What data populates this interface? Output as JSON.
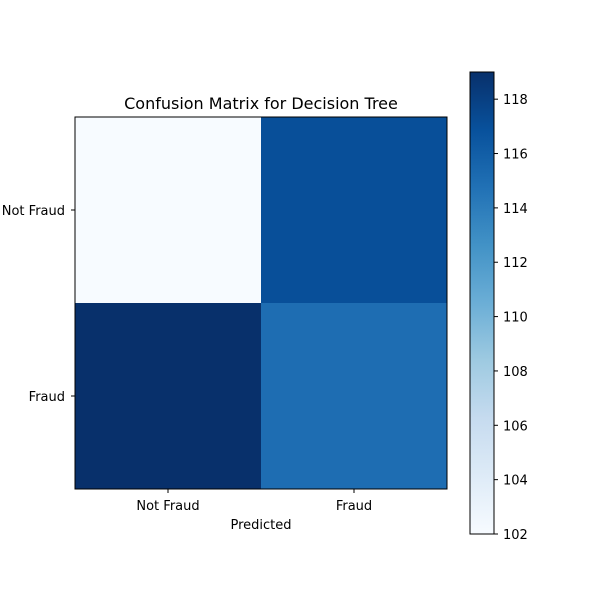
{
  "chart_data": {
    "type": "heatmap",
    "title": "Confusion Matrix for Decision Tree",
    "xlabel": "Predicted",
    "ylabel": "",
    "x_categories": [
      "Not Fraud",
      "Fraud"
    ],
    "y_categories": [
      "Not Fraud",
      "Fraud"
    ],
    "values": [
      [
        102,
        117
      ],
      [
        119,
        115
      ]
    ],
    "colormap": "Blues",
    "colorbar": {
      "min": 102,
      "max": 119,
      "ticks": [
        "102",
        "104",
        "106",
        "108",
        "110",
        "112",
        "114",
        "116",
        "118"
      ]
    }
  }
}
